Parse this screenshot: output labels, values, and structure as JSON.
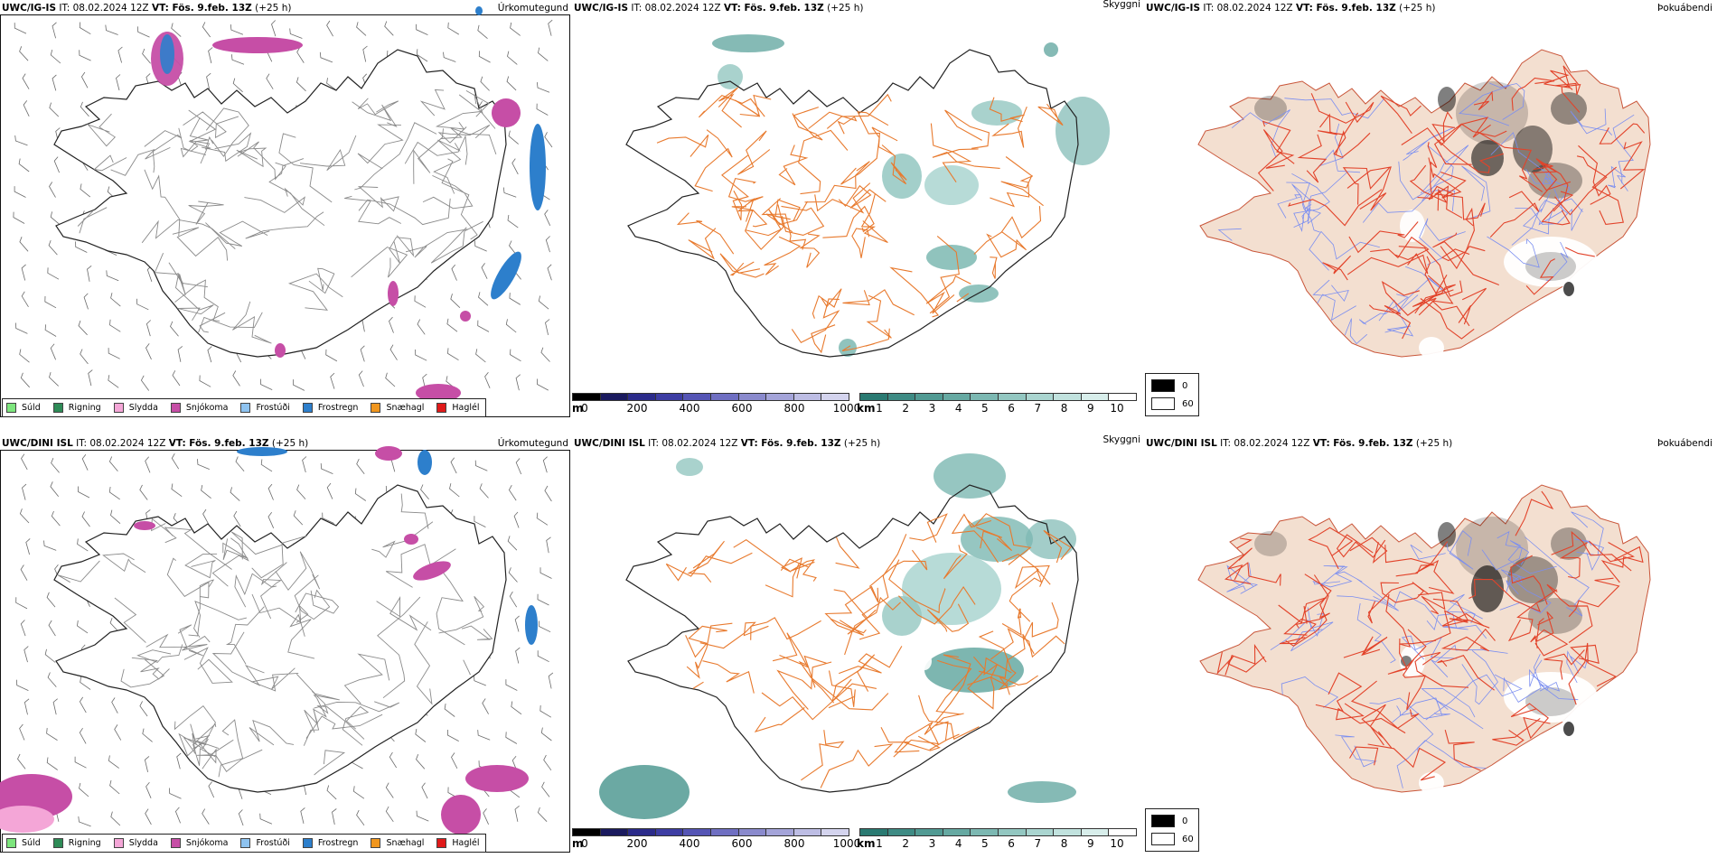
{
  "rows": [
    {
      "model": "UWC/IG-IS",
      "it_label": "IT:",
      "it_value": "08.02.2024 12Z",
      "vt_label": "VT: Fös. 9.feb. 13Z",
      "lead": "(+25 h)"
    },
    {
      "model": "UWC/DINI ISL",
      "it_label": "IT:",
      "it_value": "08.02.2024 12Z",
      "vt_label": "VT: Fös. 9.feb. 13Z",
      "lead": "(+25 h)"
    }
  ],
  "panels": {
    "precip_type_title": "Úrkomutegund",
    "visibility_title": "Skyggni",
    "fog_title": "Þokuábendi"
  },
  "precip_legend": [
    {
      "label": "Súld",
      "color": "#7de57d"
    },
    {
      "label": "Rigning",
      "color": "#2e8b57"
    },
    {
      "label": "Slydda",
      "color": "#f4a6d7"
    },
    {
      "label": "Snjókoma",
      "color": "#c64ea6"
    },
    {
      "label": "Frostúði",
      "color": "#8ec3f0"
    },
    {
      "label": "Frostregn",
      "color": "#2d7fcc"
    },
    {
      "label": "Snæhagl",
      "color": "#f0961e"
    },
    {
      "label": "Haglél",
      "color": "#e01a1a"
    }
  ],
  "visibility_legend": {
    "m_unit": "m",
    "m_ticks": [
      "0",
      "200",
      "400",
      "600",
      "800",
      "1000"
    ],
    "m_colors": [
      "#000000",
      "#1a1a5e",
      "#2b2b8a",
      "#3d3da3",
      "#5555b5",
      "#6f6fc2",
      "#8a8acd",
      "#a4a4d9",
      "#bdbde4",
      "#d4d4ee"
    ],
    "km_unit": "km",
    "km_ticks": [
      "1",
      "2",
      "3",
      "4",
      "5",
      "6",
      "7",
      "8",
      "9",
      "10"
    ],
    "km_colors": [
      "#2a7a72",
      "#3e8b84",
      "#519a93",
      "#66a9a2",
      "#7cb8b2",
      "#93c7c1",
      "#aad5d0",
      "#c1e2de",
      "#d8eeeb",
      "#ffffff"
    ]
  },
  "fog_legend": {
    "items": [
      {
        "label": "0",
        "color": "#000000"
      },
      {
        "label": "60",
        "color": "#ffffff"
      }
    ]
  },
  "colors": {
    "land_fill": "#f3dfd0",
    "roads": "#e87a2e",
    "fog_roads": "#e2432a",
    "rivers": "#7b8ef0",
    "coast": "#222222"
  }
}
